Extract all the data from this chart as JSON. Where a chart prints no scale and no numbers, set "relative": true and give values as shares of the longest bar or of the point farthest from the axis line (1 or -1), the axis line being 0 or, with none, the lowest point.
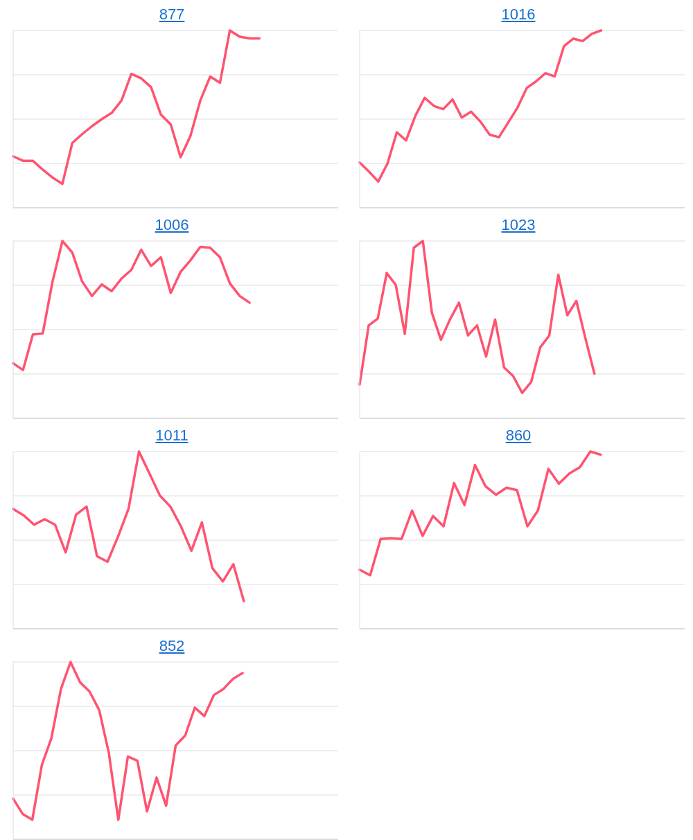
{
  "chart_data": [
    {
      "type": "line",
      "title": "877",
      "relative": true,
      "grid": "y",
      "categories": [
        null,
        null,
        null,
        null,
        null,
        null,
        null,
        null,
        null,
        null,
        null,
        null,
        null,
        null,
        null,
        null,
        null,
        null,
        null,
        null,
        null,
        null,
        null,
        null,
        null,
        null,
        null,
        null,
        null,
        null,
        null,
        null,
        null,
        null
      ],
      "series": [
        {
          "color": "#ff5370",
          "values": [
            0.29,
            0.265,
            0.265,
            0.215,
            0.17,
            0.135,
            0.365,
            0.415,
            0.46,
            0.5,
            0.535,
            0.605,
            0.755,
            0.73,
            0.68,
            0.525,
            0.47,
            0.285,
            0.405,
            0.605,
            0.74,
            0.705,
            1,
            0.965,
            0.955,
            0.955,
            null,
            null,
            null,
            null,
            null,
            null,
            null,
            null
          ]
        }
      ]
    },
    {
      "type": "line",
      "title": "1016",
      "relative": true,
      "grid": "y",
      "categories": [
        null,
        null,
        null,
        null,
        null,
        null,
        null,
        null,
        null,
        null,
        null,
        null,
        null,
        null,
        null,
        null,
        null,
        null,
        null,
        null,
        null,
        null,
        null,
        null,
        null,
        null,
        null,
        null,
        null,
        null,
        null,
        null,
        null,
        null,
        null,
        null
      ],
      "series": [
        {
          "color": "#ff5370",
          "values": [
            0.255,
            0.204,
            0.148,
            0.25,
            0.426,
            0.38,
            0.519,
            0.62,
            0.574,
            0.556,
            0.611,
            0.509,
            0.542,
            0.486,
            0.412,
            0.398,
            0.481,
            0.565,
            0.676,
            0.713,
            0.759,
            0.741,
            0.912,
            0.954,
            0.94,
            0.981,
            1,
            null,
            null,
            null,
            null,
            null,
            null,
            null,
            null,
            null
          ]
        }
      ]
    },
    {
      "type": "line",
      "title": "1006",
      "relative": true,
      "grid": "y",
      "categories": [
        null,
        null,
        null,
        null,
        null,
        null,
        null,
        null,
        null,
        null,
        null,
        null,
        null,
        null,
        null,
        null,
        null,
        null,
        null,
        null,
        null,
        null,
        null,
        null,
        null,
        null,
        null,
        null,
        null,
        null,
        null,
        null,
        null,
        null
      ],
      "series": [
        {
          "color": "#ff5370",
          "values": [
            0.31,
            0.272,
            0.473,
            0.478,
            0.772,
            1,
            0.935,
            0.772,
            0.69,
            0.755,
            0.717,
            0.788,
            0.837,
            0.951,
            0.859,
            0.908,
            0.707,
            0.826,
            0.891,
            0.967,
            0.962,
            0.908,
            0.761,
            0.69,
            0.652,
            null,
            null,
            null,
            null,
            null,
            null,
            null,
            null,
            null
          ]
        }
      ]
    },
    {
      "type": "line",
      "title": "1023",
      "relative": true,
      "grid": "y",
      "categories": [
        null,
        null,
        null,
        null,
        null,
        null,
        null,
        null,
        null,
        null,
        null,
        null,
        null,
        null,
        null,
        null,
        null,
        null,
        null,
        null,
        null,
        null,
        null,
        null,
        null,
        null,
        null,
        null,
        null,
        null,
        null,
        null,
        null,
        null,
        null,
        null,
        null
      ],
      "series": [
        {
          "color": "#ff5370",
          "values": [
            0.19,
            0.524,
            0.562,
            0.819,
            0.752,
            0.476,
            0.962,
            1,
            0.595,
            0.443,
            0.557,
            0.652,
            0.467,
            0.524,
            0.348,
            0.557,
            0.286,
            0.238,
            0.143,
            0.205,
            0.4,
            0.467,
            0.81,
            0.581,
            0.662,
            0.452,
            0.252,
            null,
            null,
            null,
            null,
            null,
            null,
            null,
            null,
            null,
            null
          ]
        }
      ]
    },
    {
      "type": "line",
      "title": "1011",
      "relative": true,
      "grid": "y",
      "categories": [
        null,
        null,
        null,
        null,
        null,
        null,
        null,
        null,
        null,
        null,
        null,
        null,
        null,
        null,
        null,
        null,
        null,
        null,
        null,
        null,
        null,
        null,
        null,
        null,
        null,
        null,
        null,
        null,
        null,
        null,
        null,
        null
      ],
      "series": [
        {
          "color": "#ff5370",
          "values": [
            0.676,
            0.64,
            0.587,
            0.618,
            0.587,
            0.431,
            0.644,
            0.689,
            0.409,
            0.378,
            0.52,
            0.676,
            1,
            0.876,
            0.751,
            0.689,
            0.578,
            0.44,
            0.6,
            0.342,
            0.267,
            0.364,
            0.156,
            null,
            null,
            null,
            null,
            null,
            null,
            null,
            null,
            null
          ]
        }
      ]
    },
    {
      "type": "line",
      "title": "860",
      "relative": true,
      "grid": "y",
      "categories": [
        null,
        null,
        null,
        null,
        null,
        null,
        null,
        null,
        null,
        null,
        null,
        null,
        null,
        null,
        null,
        null,
        null,
        null,
        null,
        null,
        null,
        null,
        null,
        null,
        null,
        null,
        null,
        null,
        null,
        null,
        null,
        null
      ],
      "series": [
        {
          "color": "#ff5370",
          "values": [
            0.333,
            0.302,
            0.507,
            0.511,
            0.507,
            0.667,
            0.524,
            0.636,
            0.578,
            0.822,
            0.698,
            0.924,
            0.804,
            0.756,
            0.796,
            0.782,
            0.578,
            0.667,
            0.902,
            0.818,
            0.876,
            0.911,
            1,
            0.982,
            null,
            null,
            null,
            null,
            null,
            null,
            null,
            null
          ]
        }
      ]
    },
    {
      "type": "line",
      "title": "852",
      "relative": true,
      "grid": "y",
      "categories": [
        null,
        null,
        null,
        null,
        null,
        null,
        null,
        null,
        null,
        null,
        null,
        null,
        null,
        null,
        null,
        null,
        null,
        null,
        null,
        null,
        null,
        null,
        null,
        null,
        null,
        null,
        null,
        null,
        null,
        null,
        null,
        null,
        null,
        null,
        null
      ],
      "series": [
        {
          "color": "#ff5370",
          "values": [
            0.229,
            0.143,
            0.11,
            0.419,
            0.571,
            0.848,
            1,
            0.886,
            0.833,
            0.729,
            0.49,
            0.11,
            0.467,
            0.443,
            0.157,
            0.348,
            0.19,
            0.529,
            0.586,
            0.743,
            0.695,
            0.814,
            0.848,
            0.905,
            0.938,
            null,
            null,
            null,
            null,
            null,
            null,
            null,
            null,
            null,
            null
          ]
        }
      ]
    }
  ]
}
